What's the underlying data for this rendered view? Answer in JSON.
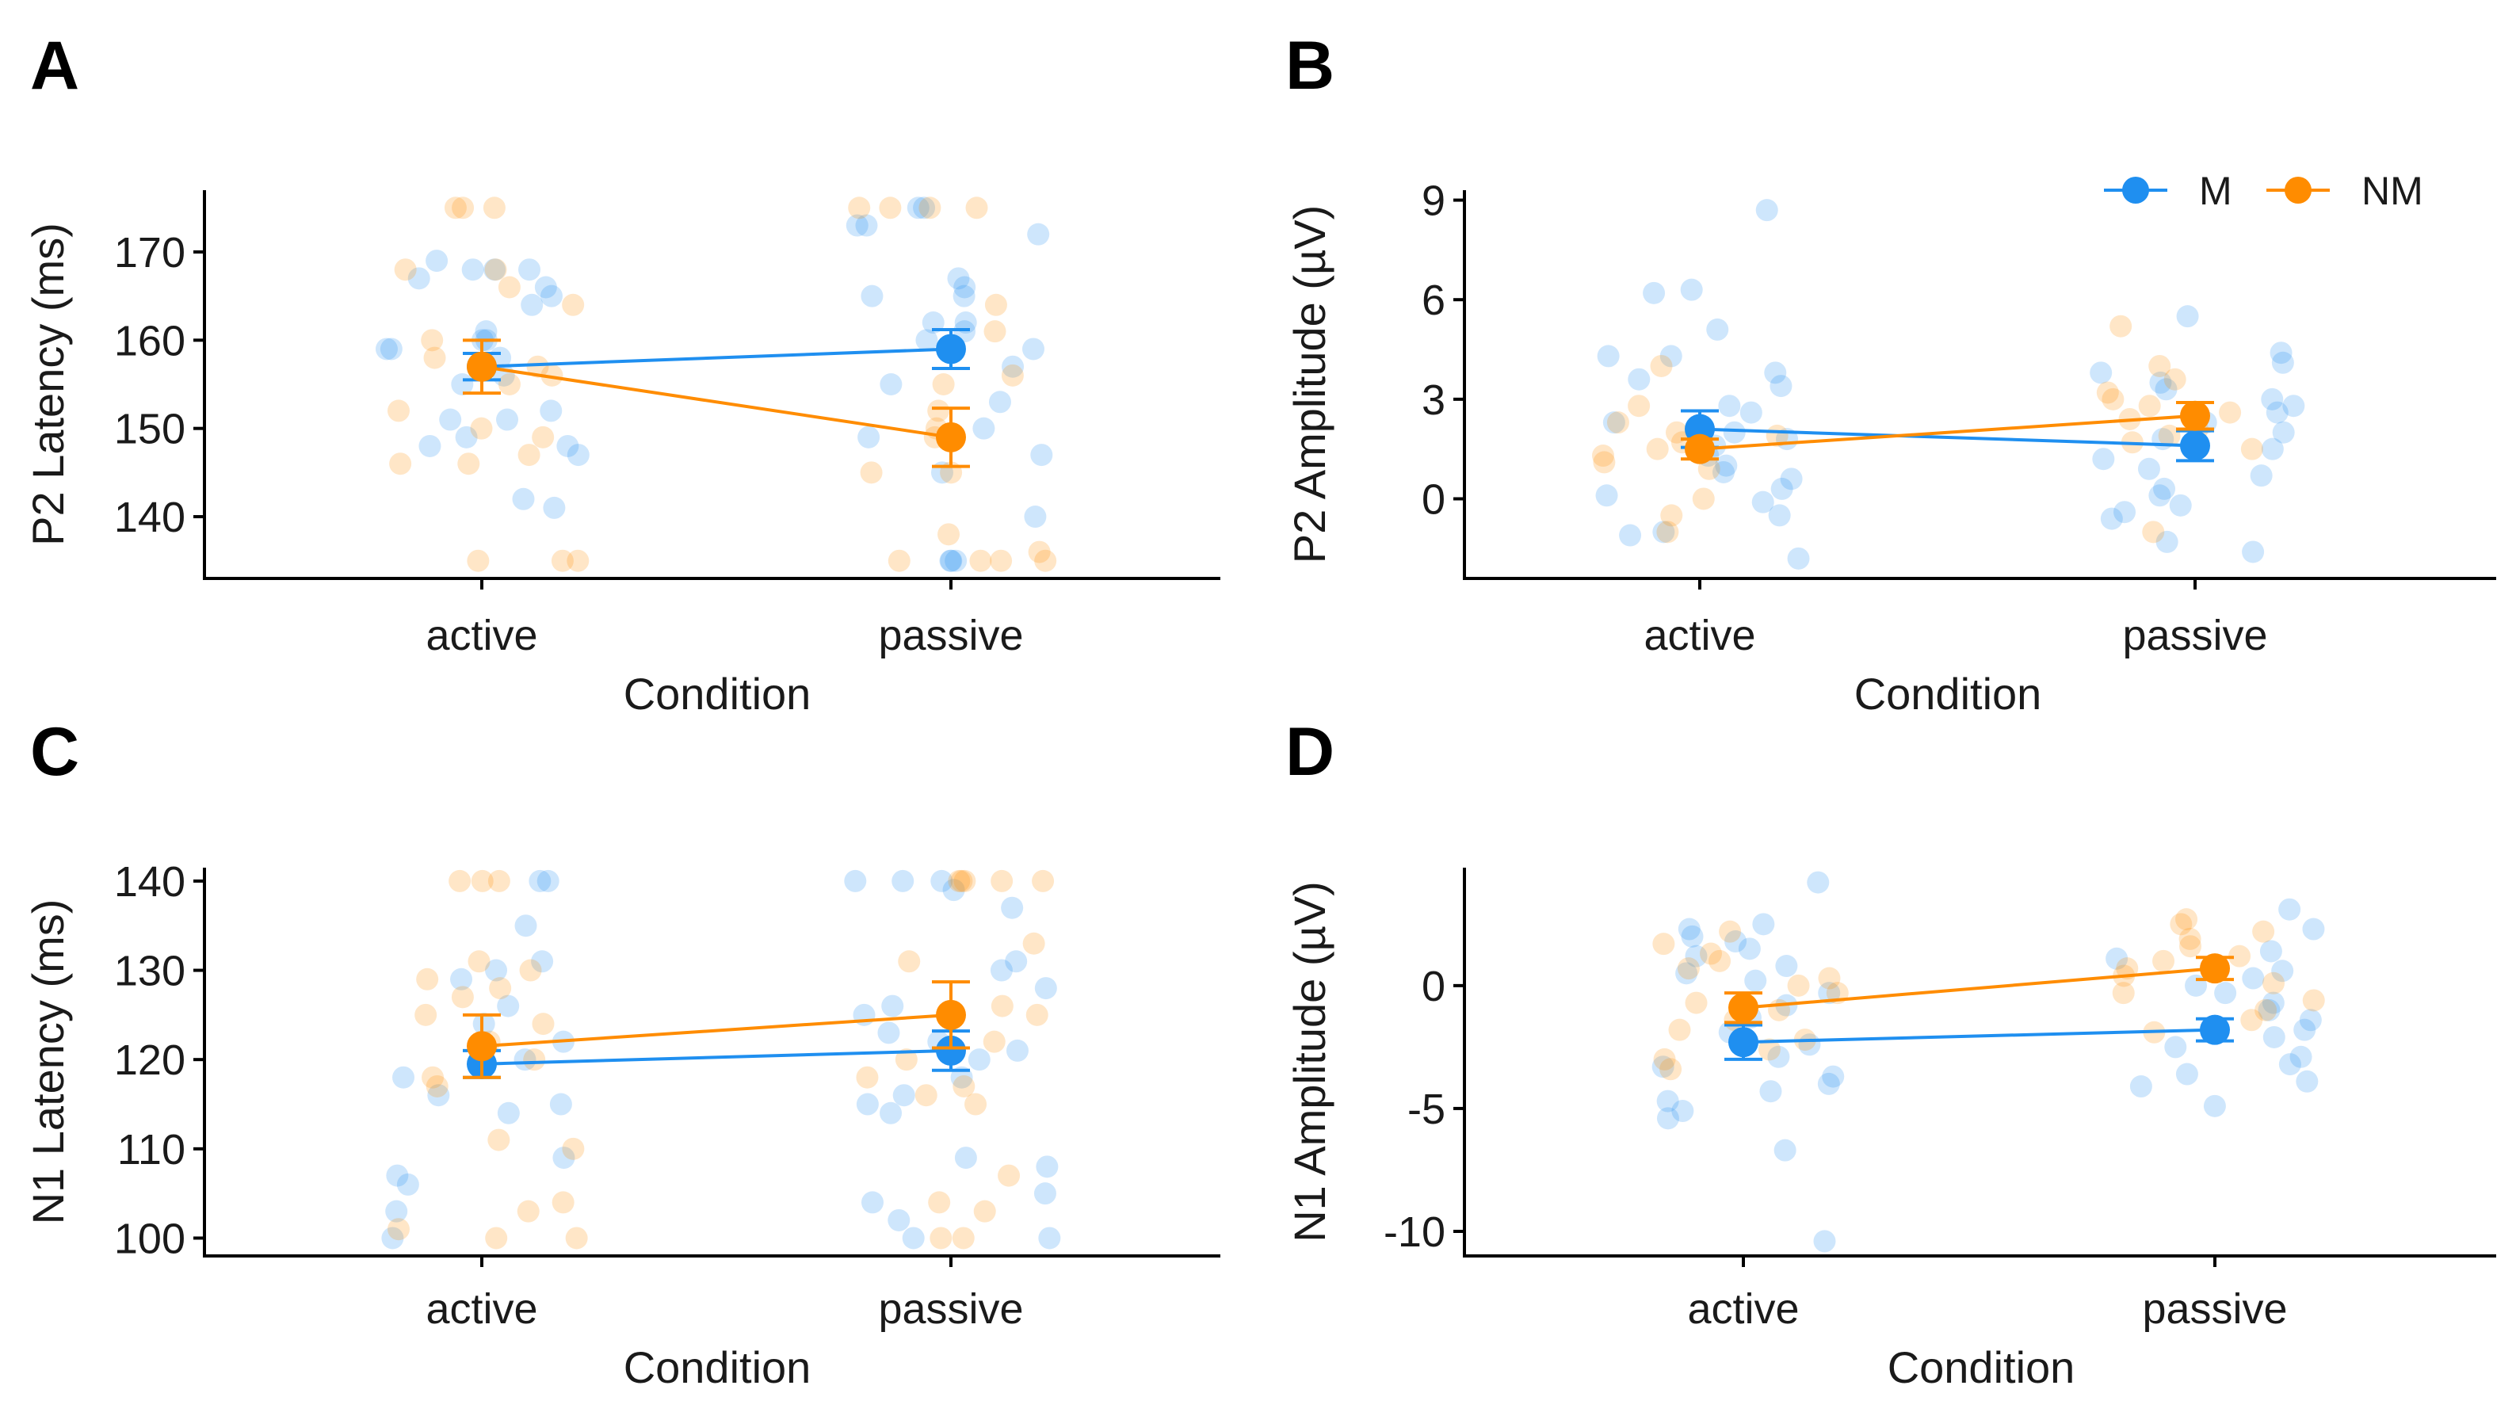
{
  "colors": {
    "M": "#1f8ff0",
    "NM": "#ff8c00"
  },
  "legend": {
    "items": [
      {
        "key": "M",
        "label": "M"
      },
      {
        "key": "NM",
        "label": "NM"
      }
    ]
  },
  "chart_data": [
    {
      "id": "A",
      "letter": "A",
      "type": "scatter",
      "title": "",
      "xlabel": "Condition",
      "ylabel": "P2 Latency (ms)",
      "categories": [
        "active",
        "passive"
      ],
      "ylim": [
        133,
        177
      ],
      "yticks": [
        140,
        150,
        160,
        170
      ],
      "series": [
        {
          "name": "M",
          "means": [
            157,
            159
          ],
          "err": [
            1.5,
            2.2
          ],
          "points": [
            [
              167,
              168,
              168,
              168,
              169,
              166,
              164,
              160,
              160,
              161,
              159,
              158,
              156,
              155,
              152,
              151,
              149,
              148,
              147,
              142,
              141,
              165,
              159,
              151,
              148
            ],
            [
              173,
              173,
              175,
              175,
              172,
              167,
              166,
              165,
              162,
              161,
              160,
              159,
              157,
              155,
              153,
              150,
              147,
              145,
              140,
              135,
              135,
              135,
              165,
              149,
              162
            ]
          ]
        },
        {
          "name": "NM",
          "means": [
            157,
            149
          ],
          "err": [
            3,
            3.3
          ],
          "points": [
            [
              175,
              175,
              175,
              168,
              168,
              166,
              164,
              160,
              158,
              157,
              156,
              155,
              152,
              150,
              149,
              147,
              146,
              146,
              135,
              135,
              135
            ],
            [
              175,
              175,
              175,
              175,
              164,
              161,
              156,
              155,
              152,
              150,
              149,
              145,
              145,
              138,
              136,
              135,
              135,
              135,
              135
            ]
          ]
        }
      ]
    },
    {
      "id": "B",
      "letter": "B",
      "type": "scatter",
      "title": "",
      "xlabel": "Condition",
      "ylabel": "P2 Amplitude (µV)",
      "categories": [
        "active",
        "passive"
      ],
      "ylim": [
        -2.4,
        9.3
      ],
      "yticks": [
        0,
        3,
        6,
        9
      ],
      "series": [
        {
          "name": "M",
          "means": [
            2.1,
            1.6
          ],
          "err": [
            0.55,
            0.45
          ],
          "points": [
            [
              8.7,
              6.3,
              6.2,
              5.1,
              4.3,
              4.3,
              3.8,
              3.6,
              3.4,
              2.8,
              2.6,
              2.3,
              2.0,
              1.8,
              1.6,
              1.3,
              1.0,
              0.8,
              0.6,
              0.3,
              0.1,
              -0.1,
              -0.5,
              -1.0,
              -1.1,
              -1.8
            ],
            [
              5.5,
              4.4,
              4.1,
              3.8,
              3.5,
              3.3,
              3.0,
              2.8,
              2.6,
              2.3,
              2.0,
              1.8,
              1.5,
              1.2,
              0.9,
              0.7,
              0.3,
              0.1,
              -0.2,
              -0.4,
              -0.6,
              -1.3,
              -1.6
            ]
          ]
        },
        {
          "name": "NM",
          "means": [
            1.5,
            2.5
          ],
          "err": [
            0.3,
            0.4
          ],
          "points": [
            [
              4.0,
              2.8,
              2.3,
              2.0,
              1.9,
              1.7,
              1.5,
              1.3,
              1.1,
              0.9,
              0.0,
              -0.5,
              -1.0
            ],
            [
              5.2,
              4.0,
              3.6,
              3.2,
              3.0,
              2.8,
              2.6,
              2.4,
              2.1,
              1.9,
              1.7,
              1.5,
              -1.0
            ]
          ]
        }
      ]
    },
    {
      "id": "C",
      "letter": "C",
      "type": "scatter",
      "title": "",
      "xlabel": "Condition",
      "ylabel": "N1 Latency (ms)",
      "categories": [
        "active",
        "passive"
      ],
      "ylim": [
        98,
        141.5
      ],
      "yticks": [
        100,
        110,
        120,
        130,
        140
      ],
      "series": [
        {
          "name": "M",
          "means": [
            119.5,
            121
          ],
          "err": [
            1.5,
            2.2
          ],
          "points": [
            [
              140,
              140,
              135,
              131,
              130,
              129,
              126,
              124,
              122,
              120,
              118,
              116,
              115,
              114,
              109,
              107,
              106,
              103,
              100
            ],
            [
              140,
              140,
              140,
              139,
              137,
              131,
              130,
              128,
              126,
              125,
              123,
              122,
              121,
              120,
              118,
              116,
              115,
              114,
              109,
              108,
              105,
              104,
              102,
              100,
              100
            ]
          ]
        },
        {
          "name": "NM",
          "means": [
            121.5,
            125
          ],
          "err": [
            3.5,
            3.7
          ],
          "points": [
            [
              140,
              140,
              140,
              131,
              130,
              129,
              128,
              127,
              125,
              124,
              122,
              120,
              118,
              117,
              111,
              110,
              104,
              103,
              101,
              100,
              100
            ],
            [
              140,
              140,
              140,
              140,
              140,
              133,
              131,
              126,
              125,
              122,
              120,
              118,
              117,
              116,
              115,
              107,
              104,
              103,
              100,
              100
            ]
          ]
        }
      ]
    },
    {
      "id": "D",
      "letter": "D",
      "type": "scatter",
      "title": "",
      "xlabel": "Condition",
      "ylabel": "N1 Amplitude (µV)",
      "categories": [
        "active",
        "passive"
      ],
      "ylim": [
        -11,
        4.8
      ],
      "yticks": [
        -10,
        -5,
        0
      ],
      "series": [
        {
          "name": "M",
          "means": [
            -2.3,
            -1.8
          ],
          "err": [
            0.7,
            0.45
          ],
          "points": [
            [
              4.2,
              2.5,
              2.3,
              2.0,
              1.8,
              1.5,
              1.2,
              0.8,
              0.5,
              0.2,
              -0.3,
              -0.8,
              -1.3,
              -1.9,
              -2.4,
              -2.9,
              -3.3,
              -3.7,
              -4.0,
              -4.3,
              -4.7,
              -5.1,
              -5.4,
              -6.7,
              -10.4
            ],
            [
              3.1,
              2.3,
              1.4,
              1.1,
              0.6,
              0.3,
              0.0,
              -0.3,
              -0.7,
              -1.0,
              -1.4,
              -1.8,
              -2.1,
              -2.5,
              -2.9,
              -3.2,
              -3.6,
              -3.9,
              -4.1,
              -4.9
            ]
          ]
        },
        {
          "name": "NM",
          "means": [
            -0.9,
            0.7
          ],
          "err": [
            0.6,
            0.45
          ],
          "points": [
            [
              2.2,
              1.7,
              1.3,
              1.0,
              0.7,
              0.3,
              0.0,
              -0.3,
              -0.7,
              -1.0,
              -1.4,
              -1.8,
              -2.2,
              -2.6,
              -3.0,
              -3.4
            ],
            [
              2.7,
              2.5,
              2.2,
              1.9,
              1.6,
              1.2,
              1.0,
              0.7,
              0.4,
              0.1,
              -0.3,
              -0.6,
              -1.0,
              -1.4,
              -1.9
            ]
          ]
        }
      ]
    }
  ]
}
